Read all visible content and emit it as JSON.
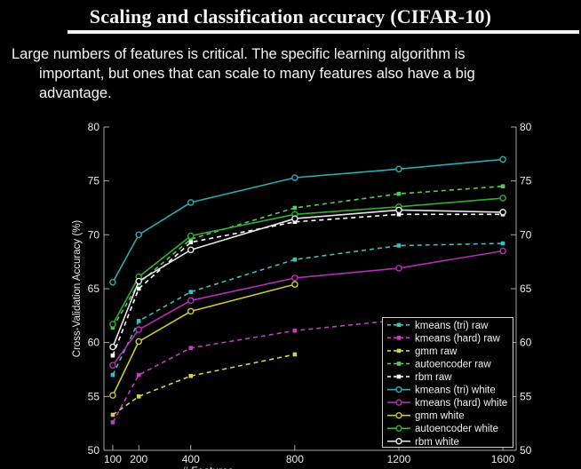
{
  "slide": {
    "title": "Scaling and classification accuracy (CIFAR-10)",
    "body_lines": [
      "Large numbers of features is critical. The specific learning algorithm is",
      "important, but ones that can scale to many features also have a big",
      "advantage."
    ]
  },
  "chart_data": {
    "type": "line",
    "title": "",
    "xlabel": "# Features",
    "ylabel": "Cross-Validation Accuracy (%)",
    "xlim": [
      66,
      1651
    ],
    "ylim": [
      50,
      80
    ],
    "x_ticks": [
      100,
      200,
      400,
      800,
      1200,
      1600
    ],
    "y_ticks": [
      50,
      55,
      60,
      65,
      70,
      75,
      80
    ],
    "grid": false,
    "legend_position": "lower right",
    "background_color": "#000000",
    "axis_color": "#a8a8a8",
    "label_color": "#e8e8e8",
    "series": [
      {
        "name": "kmeans (tri) raw",
        "color": "#3dbdbd",
        "style": "dashed",
        "marker": "square",
        "x": [
          100,
          200,
          400,
          800,
          1200,
          1600
        ],
        "y": [
          57.0,
          62.0,
          64.7,
          67.7,
          69.0,
          69.2
        ]
      },
      {
        "name": "kmeans (hard) raw",
        "color": "#bf3fbf",
        "style": "dashed",
        "marker": "square",
        "x": [
          100,
          200,
          400,
          800,
          1200
        ],
        "y": [
          52.6,
          57.0,
          59.5,
          61.1,
          62.1
        ]
      },
      {
        "name": "gmm raw",
        "color": "#cfcf5a",
        "style": "dashed",
        "marker": "square",
        "x": [
          100,
          200,
          400,
          800
        ],
        "y": [
          53.3,
          55.0,
          56.9,
          58.9
        ]
      },
      {
        "name": "autoencoder raw",
        "color": "#59c659",
        "style": "dashed",
        "marker": "square",
        "x": [
          100,
          200,
          400,
          800,
          1200,
          1600
        ],
        "y": [
          61.4,
          65.5,
          69.6,
          72.5,
          73.8,
          74.5
        ]
      },
      {
        "name": "rbm raw",
        "color": "#ffffff",
        "style": "dashed",
        "marker": "square",
        "x": [
          100,
          200,
          400,
          800,
          1200,
          1600
        ],
        "y": [
          58.8,
          65.0,
          69.3,
          71.2,
          71.9,
          71.9
        ]
      },
      {
        "name": "kmeans (tri) white",
        "color": "#2aacac",
        "style": "solid",
        "marker": "circle",
        "x": [
          100,
          200,
          400,
          800,
          1200,
          1600
        ],
        "y": [
          65.6,
          70.0,
          73.0,
          75.3,
          76.1,
          77.0
        ]
      },
      {
        "name": "kmeans (hard) white",
        "color": "#b52db5",
        "style": "solid",
        "marker": "circle",
        "x": [
          100,
          200,
          400,
          800,
          1200,
          1600
        ],
        "y": [
          57.9,
          61.2,
          63.9,
          66.0,
          66.9,
          68.5
        ]
      },
      {
        "name": "gmm white",
        "color": "#c9c931",
        "style": "solid",
        "marker": "circle",
        "x": [
          100,
          200,
          400,
          800
        ],
        "y": [
          55.1,
          60.1,
          62.9,
          65.4
        ]
      },
      {
        "name": "autoencoder white",
        "color": "#2fae2f",
        "style": "solid",
        "marker": "circle",
        "x": [
          100,
          200,
          400,
          800,
          1200,
          1600
        ],
        "y": [
          61.7,
          66.1,
          69.9,
          71.9,
          72.6,
          73.4
        ]
      },
      {
        "name": "rbm white",
        "color": "#e6e6e6",
        "style": "solid",
        "marker": "circle",
        "x": [
          100,
          200,
          400,
          800,
          1200,
          1600
        ],
        "y": [
          59.6,
          65.7,
          68.6,
          71.5,
          72.3,
          72.1
        ]
      }
    ]
  }
}
